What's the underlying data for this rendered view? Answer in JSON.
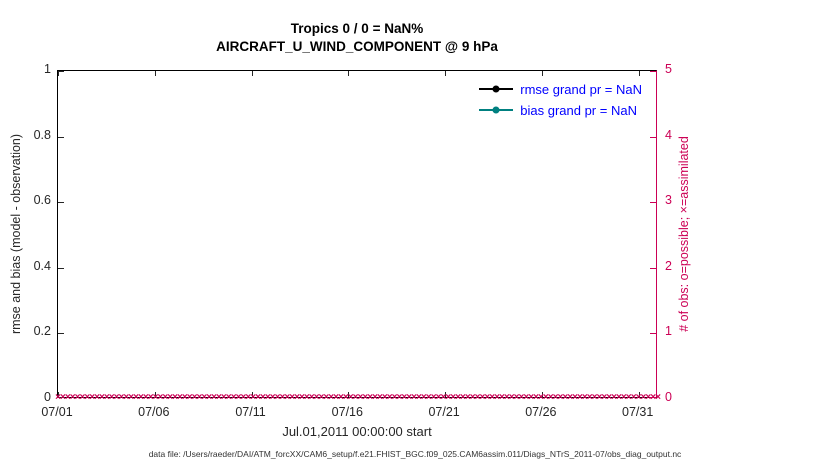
{
  "title": {
    "line1": "Tropics 0 / 0 = NaN%",
    "line2": "AIRCRAFT_U_WIND_COMPONENT @ 9 hPa"
  },
  "chart_data": {
    "type": "line",
    "title": "Tropics 0 / 0 = NaN% — AIRCRAFT_U_WIND_COMPONENT @ 9 hPa",
    "xlabel": "Jul.01,2011 00:00:00 start",
    "x_ticks": [
      "07/01",
      "07/06",
      "07/11",
      "07/16",
      "07/21",
      "07/26",
      "07/31"
    ],
    "x_tick_days": [
      0,
      5,
      10,
      15,
      20,
      25,
      30
    ],
    "x_range_days": [
      0,
      31
    ],
    "left_axis": {
      "label": "rmse and bias (model - observation)",
      "ticks": [
        0,
        0.2,
        0.4,
        0.6,
        0.8,
        1
      ],
      "range": [
        0,
        1
      ],
      "color": "#262626"
    },
    "right_axis": {
      "label": "# of obs: o=possible; ×=assimilated",
      "ticks": [
        0,
        1,
        2,
        3,
        4,
        5
      ],
      "range": [
        0,
        5
      ],
      "color": "#cc0055"
    },
    "series": [
      {
        "name": "rmse grand pr = NaN",
        "color": "#000000",
        "values": []
      },
      {
        "name": "bias grand pr = NaN",
        "color": "#008080",
        "values": []
      }
    ],
    "obs_markers": {
      "symbol": "×",
      "count": 124,
      "value": 0,
      "color": "#cc0055"
    },
    "legend_text_color": "#0000ff",
    "grid": false,
    "legend_position": "top-right-inside"
  },
  "footer": {
    "data_file": "data file: /Users/raeder/DAI/ATM_forcXX/CAM6_setup/f.e21.FHIST_BGC.f09_025.CAM6assim.011/Diags_NTrS_2011-07/obs_diag_output.nc"
  }
}
